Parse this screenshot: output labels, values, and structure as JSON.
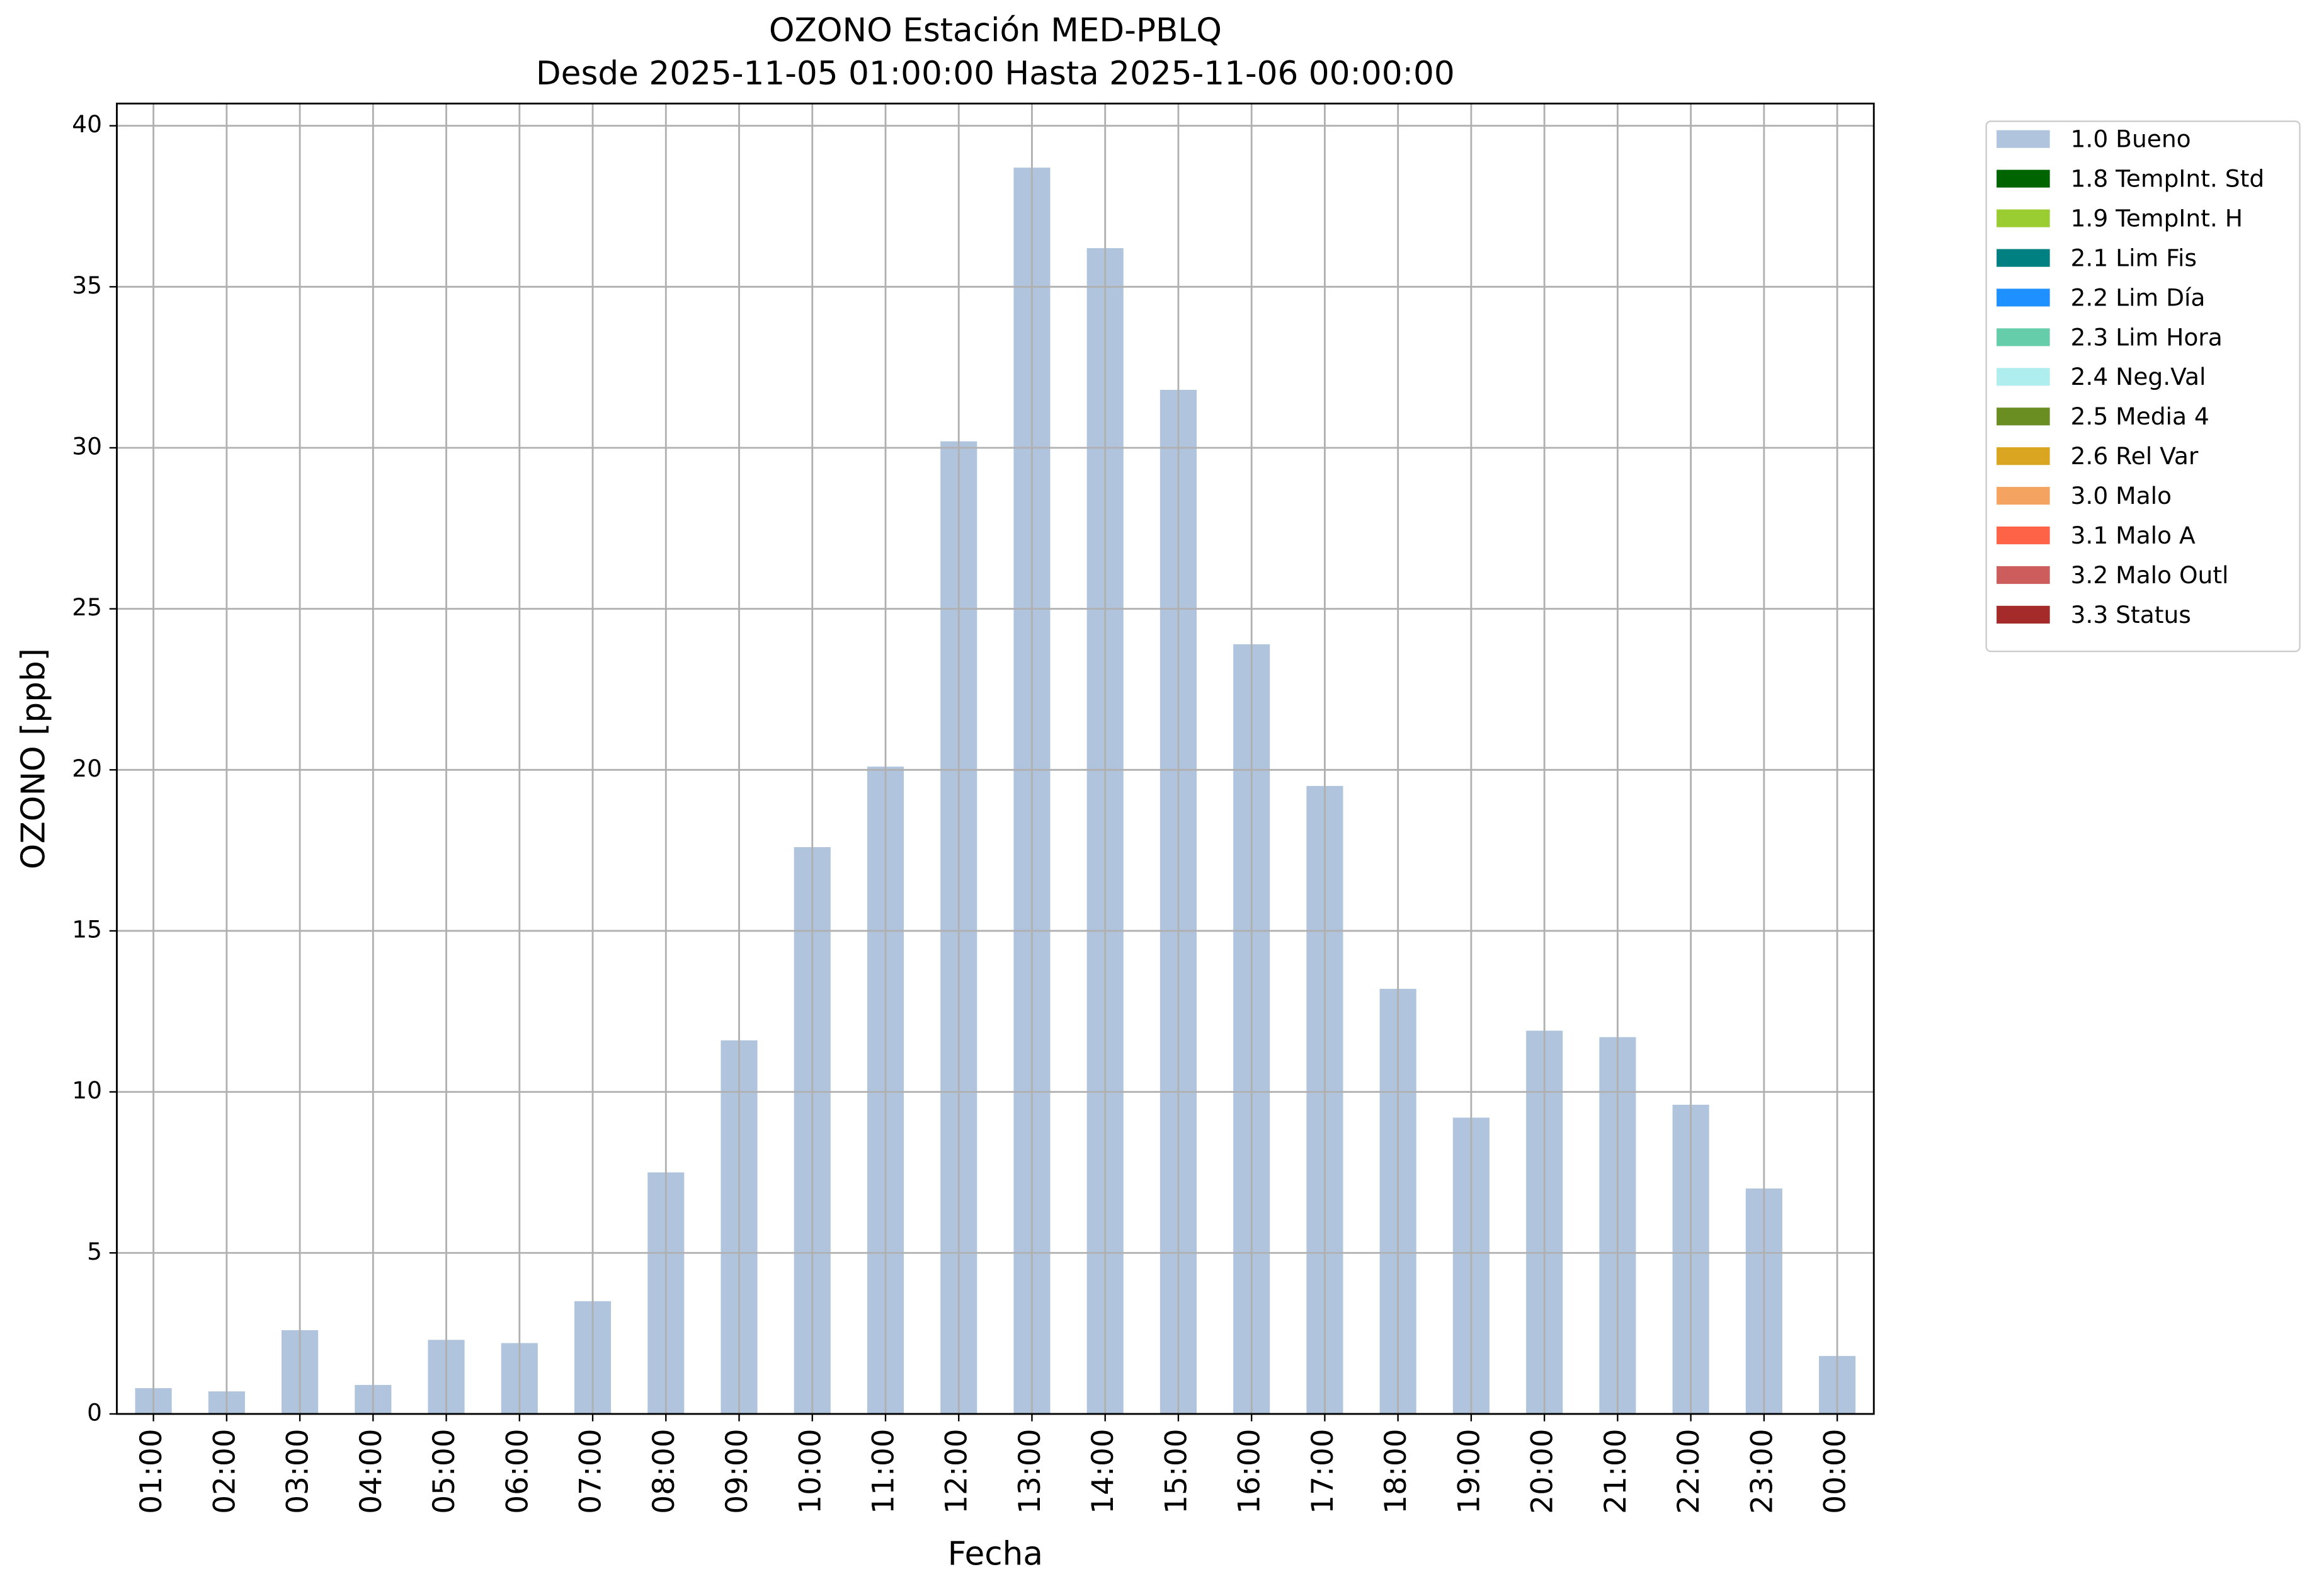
{
  "chart_data": {
    "type": "stacked_bar",
    "title": "OZONO Estación MED-PBLQ",
    "subtitle": "Desde 2025-11-05 01:00:00 Hasta 2025-11-06 00:00:00",
    "x_label": "Fecha",
    "y_label": "OZONO [ppb]",
    "categories": [
      "01:00",
      "02:00",
      "03:00",
      "04:00",
      "05:00",
      "06:00",
      "07:00",
      "08:00",
      "09:00",
      "10:00",
      "11:00",
      "12:00",
      "13:00",
      "14:00",
      "15:00",
      "16:00",
      "17:00",
      "18:00",
      "19:00",
      "20:00",
      "21:00",
      "22:00",
      "23:00",
      "00:00"
    ],
    "series": [
      {
        "name": "1.0 Bueno",
        "color": "#b0c4de",
        "values": [
          0.8,
          0.7,
          2.6,
          0.9,
          2.3,
          2.2,
          3.5,
          7.5,
          11.6,
          17.6,
          20.1,
          30.2,
          38.7,
          36.2,
          31.8,
          23.9,
          19.5,
          13.2,
          9.2,
          11.9,
          11.7,
          9.6,
          7.0,
          1.8
        ]
      },
      {
        "name": "1.8 TempInt. Std",
        "color": "#006400",
        "values": [
          0,
          0,
          0,
          0,
          0,
          0,
          0,
          0,
          0,
          0,
          0,
          0,
          0,
          0,
          0,
          0,
          0,
          0,
          0,
          0,
          0,
          0,
          0,
          0
        ]
      },
      {
        "name": "1.9 TempInt. H",
        "color": "#9acd32",
        "values": [
          0,
          0,
          0,
          0,
          0,
          0,
          0,
          0,
          0,
          0,
          0,
          0,
          0,
          0,
          0,
          0,
          0,
          0,
          0,
          0,
          0,
          0,
          0,
          0
        ]
      },
      {
        "name": "2.1 Lim Fis",
        "color": "#008080",
        "values": [
          0,
          0,
          0,
          0,
          0,
          0,
          0,
          0,
          0,
          0,
          0,
          0,
          0,
          0,
          0,
          0,
          0,
          0,
          0,
          0,
          0,
          0,
          0,
          0
        ]
      },
      {
        "name": "2.2 Lim Día",
        "color": "#1e90ff",
        "values": [
          0,
          0,
          0,
          0,
          0,
          0,
          0,
          0,
          0,
          0,
          0,
          0,
          0,
          0,
          0,
          0,
          0,
          0,
          0,
          0,
          0,
          0,
          0,
          0
        ]
      },
      {
        "name": "2.3 Lim Hora",
        "color": "#66cdaa",
        "values": [
          0,
          0,
          0,
          0,
          0,
          0,
          0,
          0,
          0,
          0,
          0,
          0,
          0,
          0,
          0,
          0,
          0,
          0,
          0,
          0,
          0,
          0,
          0,
          0
        ]
      },
      {
        "name": "2.4 Neg.Val",
        "color": "#afeeee",
        "values": [
          0,
          0,
          0,
          0,
          0,
          0,
          0,
          0,
          0,
          0,
          0,
          0,
          0,
          0,
          0,
          0,
          0,
          0,
          0,
          0,
          0,
          0,
          0,
          0
        ]
      },
      {
        "name": "2.5 Media 4",
        "color": "#6b8e23",
        "values": [
          0,
          0,
          0,
          0,
          0,
          0,
          0,
          0,
          0,
          0,
          0,
          0,
          0,
          0,
          0,
          0,
          0,
          0,
          0,
          0,
          0,
          0,
          0,
          0
        ]
      },
      {
        "name": "2.6 Rel Var",
        "color": "#daa520",
        "values": [
          0,
          0,
          0,
          0,
          0,
          0,
          0,
          0,
          0,
          0,
          0,
          0,
          0,
          0,
          0,
          0,
          0,
          0,
          0,
          0,
          0,
          0,
          0,
          0
        ]
      },
      {
        "name": "3.0 Malo",
        "color": "#f4a460",
        "values": [
          0,
          0,
          0,
          0,
          0,
          0,
          0,
          0,
          0,
          0,
          0,
          0,
          0,
          0,
          0,
          0,
          0,
          0,
          0,
          0,
          0,
          0,
          0,
          0
        ]
      },
      {
        "name": "3.1 Malo A",
        "color": "#ff6347",
        "values": [
          0,
          0,
          0,
          0,
          0,
          0,
          0,
          0,
          0,
          0,
          0,
          0,
          0,
          0,
          0,
          0,
          0,
          0,
          0,
          0,
          0,
          0,
          0,
          0
        ]
      },
      {
        "name": "3.2 Malo Outl",
        "color": "#cd5c5c",
        "values": [
          0,
          0,
          0,
          0,
          0,
          0,
          0,
          0,
          0,
          0,
          0,
          0,
          0,
          0,
          0,
          0,
          0,
          0,
          0,
          0,
          0,
          0,
          0,
          0
        ]
      },
      {
        "name": "3.3 Status",
        "color": "#a52a2a",
        "values": [
          0,
          0,
          0,
          0,
          0,
          0,
          0,
          0,
          0,
          0,
          0,
          0,
          0,
          0,
          0,
          0,
          0,
          0,
          0,
          0,
          0,
          0,
          0,
          0
        ]
      }
    ],
    "ylim": [
      0,
      40.69
    ],
    "yticks": [
      0,
      5,
      10,
      15,
      20,
      25,
      30,
      35,
      40
    ],
    "grid": true,
    "legend": "outside-upper-right"
  }
}
